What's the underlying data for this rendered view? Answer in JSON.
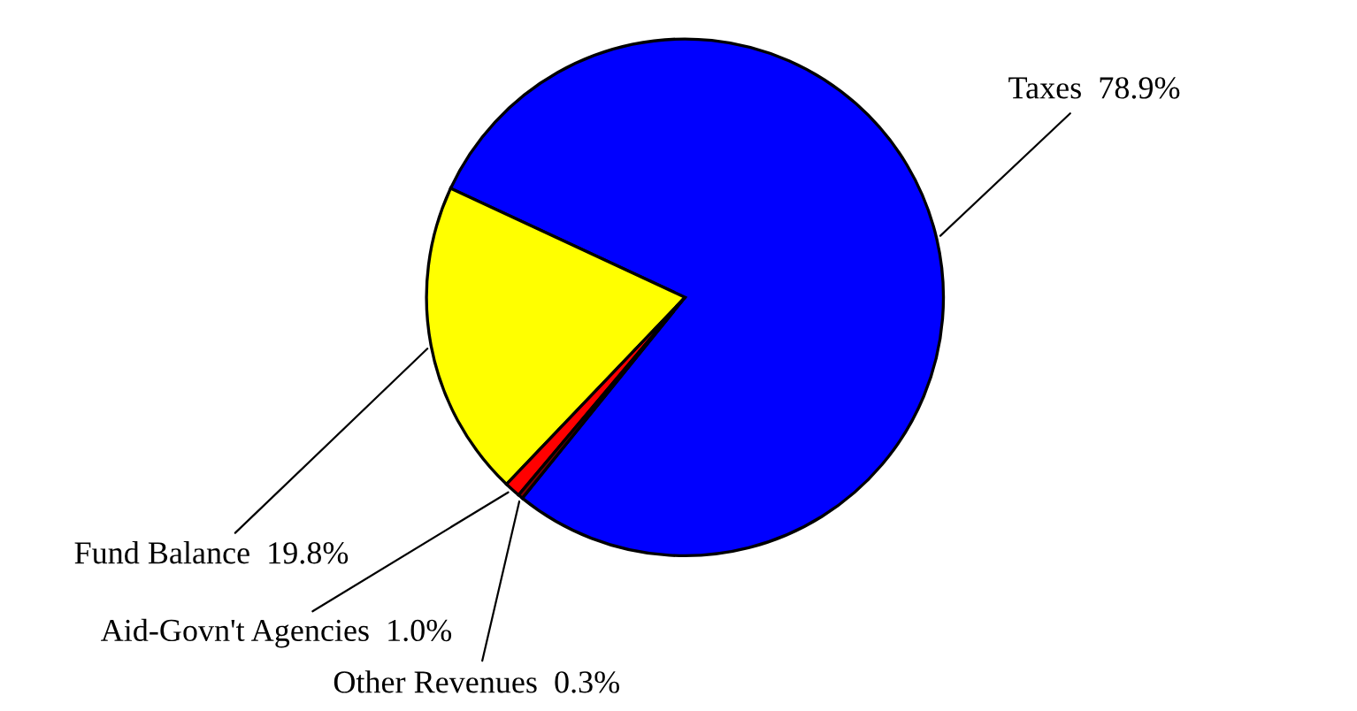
{
  "chart_data": {
    "type": "pie",
    "categories": [
      "Taxes",
      "Fund Balance",
      "Aid-Govn't Agencies",
      "Other Revenues"
    ],
    "values": [
      78.9,
      19.8,
      1.0,
      0.3
    ],
    "value_labels": [
      "78.9%",
      "19.8%",
      "1.0%",
      "0.3%"
    ],
    "colors": [
      "#0000ff",
      "#ffff00",
      "#ff0000",
      "#800000"
    ],
    "legend": false
  }
}
